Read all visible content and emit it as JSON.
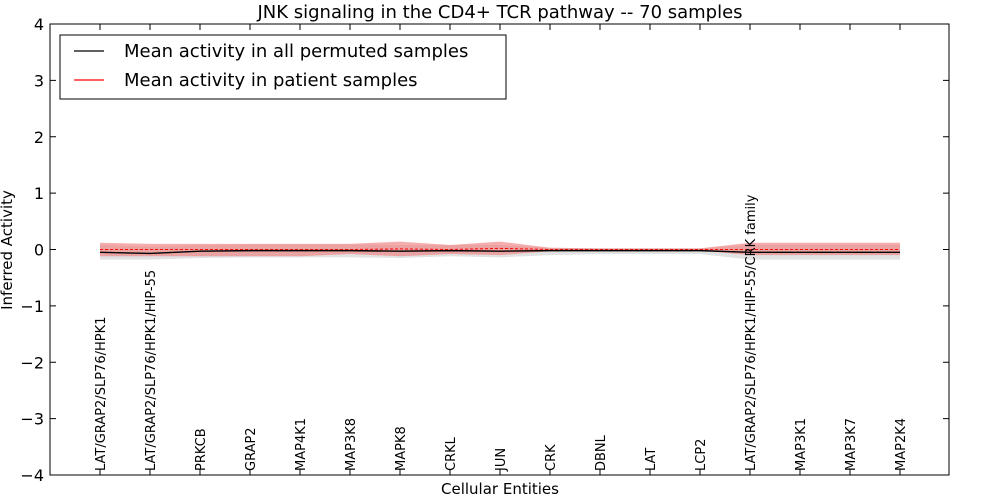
{
  "chart_data": {
    "type": "line",
    "title": "JNK signaling in the CD4+ TCR pathway -- 70 samples",
    "xlabel": "Cellular Entities",
    "ylabel": "Inferred Activity",
    "ylim": [
      -4,
      4
    ],
    "yticks": [
      -4,
      -3,
      -2,
      -1,
      0,
      1,
      2,
      3,
      4
    ],
    "ytick_labels": [
      "−4",
      "−3",
      "−2",
      "−1",
      "0",
      "1",
      "2",
      "3",
      "4"
    ],
    "legend_position": "top-left",
    "categories": [
      "LAT/GRAP2/SLP76/HPK1",
      "LAT/GRAP2/SLP76/HPK1/HIP-55",
      "PRKCB",
      "GRAP2",
      "MAP4K1",
      "MAP3K8",
      "MAPK8",
      "CRKL",
      "JUN",
      "CRK",
      "DBNL",
      "LAT",
      "LCP2",
      "LAT/GRAP2/SLP76/HPK1/HIP-55/CRK family",
      "MAP3K1",
      "MAP3K7",
      "MAP2K4"
    ],
    "series": [
      {
        "name": "Mean activity in all permuted samples",
        "color": "#000000",
        "band_color": "#bfbfbf",
        "values": [
          -0.05,
          -0.07,
          -0.03,
          -0.02,
          -0.02,
          -0.02,
          -0.03,
          -0.02,
          -0.03,
          -0.02,
          -0.02,
          -0.02,
          -0.02,
          -0.05,
          -0.05,
          -0.05,
          -0.05
        ],
        "lower": [
          -0.18,
          -0.18,
          -0.15,
          -0.14,
          -0.14,
          -0.14,
          -0.15,
          -0.12,
          -0.14,
          -0.1,
          -0.08,
          -0.08,
          -0.08,
          -0.18,
          -0.18,
          -0.18,
          -0.18
        ],
        "upper": [
          0.08,
          0.05,
          0.08,
          0.09,
          0.09,
          0.09,
          0.08,
          0.08,
          0.08,
          0.03,
          0.02,
          0.02,
          0.02,
          0.08,
          0.08,
          0.08,
          0.08
        ]
      },
      {
        "name": "Mean activity in patient samples",
        "color": "#ff0000",
        "band_color": "#f08080",
        "values": [
          0,
          0,
          0,
          0,
          0,
          0,
          0.01,
          0,
          0.02,
          0,
          0,
          0,
          0,
          0,
          0,
          0,
          0
        ],
        "lower": [
          -0.12,
          -0.12,
          -0.12,
          -0.12,
          -0.12,
          -0.08,
          -0.12,
          -0.08,
          -0.1,
          -0.03,
          -0.02,
          -0.02,
          -0.02,
          -0.1,
          -0.1,
          -0.1,
          -0.1
        ],
        "upper": [
          0.12,
          0.1,
          0.1,
          0.1,
          0.1,
          0.1,
          0.14,
          0.08,
          0.14,
          0.03,
          0.02,
          0.02,
          0.02,
          0.12,
          0.12,
          0.12,
          0.12
        ]
      }
    ]
  }
}
